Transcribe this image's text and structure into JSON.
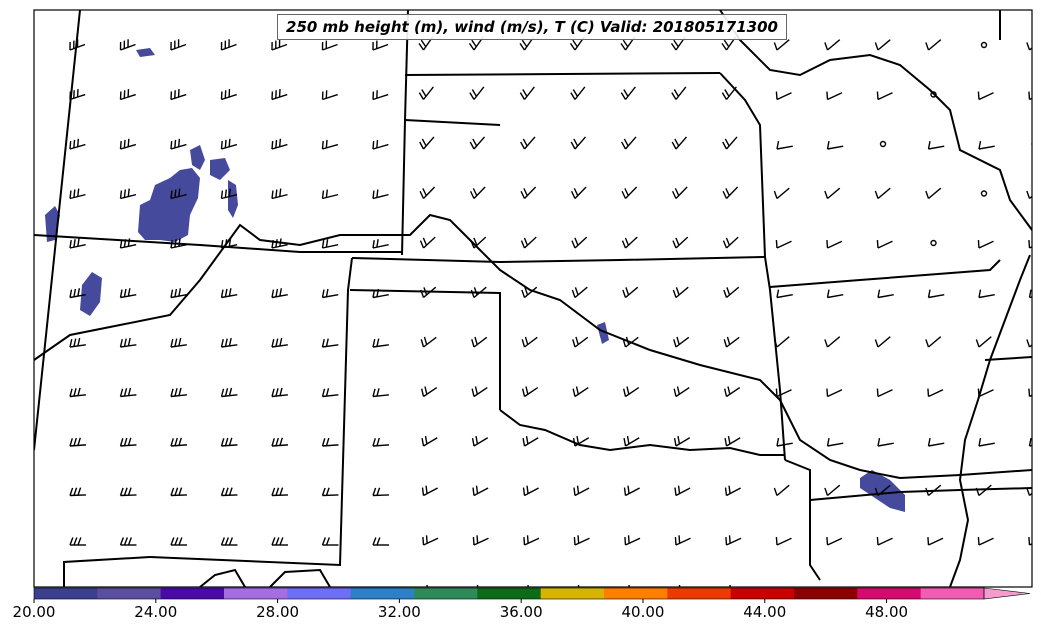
{
  "title": "250 mb height (m), wind (m/s), T (C) Valid: 201805171300",
  "colorbar": {
    "min": 20,
    "max": 51.2,
    "step": 1.6,
    "extend": "max",
    "tick_labels": [
      "20.00",
      "24.00",
      "28.00",
      "32.00",
      "36.00",
      "40.00",
      "44.00",
      "48.00"
    ],
    "tick_values": [
      20,
      24,
      28,
      32,
      36,
      40,
      44,
      48
    ],
    "colors": [
      "#3b3f8f",
      "#5a4ea0",
      "#4b0aa6",
      "#a46ee0",
      "#6f6ff5",
      "#2f7fc8",
      "#2e8b57",
      "#0b6b16",
      "#d8b300",
      "#ff8000",
      "#ee3a00",
      "#c80000",
      "#8b0000",
      "#d40a6e",
      "#f25db4"
    ],
    "extend_color": "#f59ccc"
  },
  "fill_color": "#454a9c",
  "map": {
    "features": [
      "state-boundaries",
      "wind-barbs",
      "temperature-shading"
    ]
  }
}
